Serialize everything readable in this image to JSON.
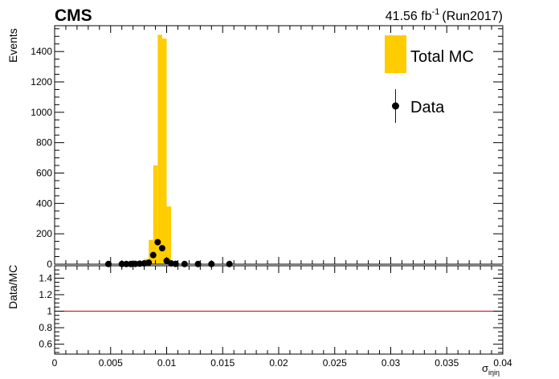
{
  "header": {
    "experiment": "CMS",
    "lumi_value": "41.56 fb",
    "lumi_sup": "-1",
    "lumi_run": "(Run2017)"
  },
  "legend": {
    "mc_label": "Total MC",
    "data_label": "Data"
  },
  "colors": {
    "mc_fill": "#ffcc00",
    "data_marker": "#000000",
    "data_errorbar": "#0000cc",
    "ratio_line": "#cc0000"
  },
  "chart_data": [
    {
      "type": "bar",
      "title": "",
      "ylabel": "Events",
      "xlabel": "σ_iηiη",
      "xlim": [
        0,
        0.04
      ],
      "ylim": [
        0,
        1570
      ],
      "y_ticks": [
        0,
        200,
        400,
        600,
        800,
        1000,
        1200,
        1400
      ],
      "series": [
        {
          "name": "Total MC",
          "type": "histogram",
          "bin_width": 0.0004,
          "bins": [
            {
              "x": 0.0072,
              "y": 5
            },
            {
              "x": 0.0076,
              "y": 15
            },
            {
              "x": 0.008,
              "y": 35
            },
            {
              "x": 0.0084,
              "y": 160
            },
            {
              "x": 0.0088,
              "y": 650
            },
            {
              "x": 0.0092,
              "y": 1510
            },
            {
              "x": 0.0096,
              "y": 1485
            },
            {
              "x": 0.01,
              "y": 380
            },
            {
              "x": 0.0104,
              "y": 20
            },
            {
              "x": 0.0108,
              "y": 5
            }
          ]
        },
        {
          "name": "Data",
          "type": "points",
          "points": [
            {
              "x": 0.0046,
              "y": 1
            },
            {
              "x": 0.0058,
              "y": 1
            },
            {
              "x": 0.0062,
              "y": 1
            },
            {
              "x": 0.0066,
              "y": 1
            },
            {
              "x": 0.007,
              "y": 2
            },
            {
              "x": 0.0074,
              "y": 3
            },
            {
              "x": 0.0078,
              "y": 5
            },
            {
              "x": 0.0082,
              "y": 10
            },
            {
              "x": 0.0086,
              "y": 60
            },
            {
              "x": 0.009,
              "y": 145
            },
            {
              "x": 0.0094,
              "y": 105
            },
            {
              "x": 0.0098,
              "y": 22
            },
            {
              "x": 0.0102,
              "y": 5
            },
            {
              "x": 0.0106,
              "y": 2
            },
            {
              "x": 0.0114,
              "y": 1
            },
            {
              "x": 0.0126,
              "y": 1
            },
            {
              "x": 0.0138,
              "y": 1
            },
            {
              "x": 0.0154,
              "y": 1
            }
          ]
        }
      ]
    },
    {
      "type": "line",
      "title": "",
      "ylabel": "Data/MC",
      "xlabel": "σ_iηiη",
      "xlim": [
        0,
        0.04
      ],
      "ylim": [
        0.48,
        1.55
      ],
      "x_ticks": [
        0,
        0.005,
        0.01,
        0.015,
        0.02,
        0.025,
        0.03,
        0.035,
        0.04
      ],
      "x_tick_labels": [
        "0",
        "0.005",
        "0.01",
        "0.015",
        "0.02",
        "0.025",
        "0.03",
        "0.035",
        "0.04"
      ],
      "y_ticks": [
        0.6,
        0.8,
        1,
        1.2,
        1.4
      ],
      "y_tick_labels": [
        "0.6",
        "0.8",
        "1",
        "1.2",
        "1.4"
      ],
      "reference_line": 1
    }
  ]
}
